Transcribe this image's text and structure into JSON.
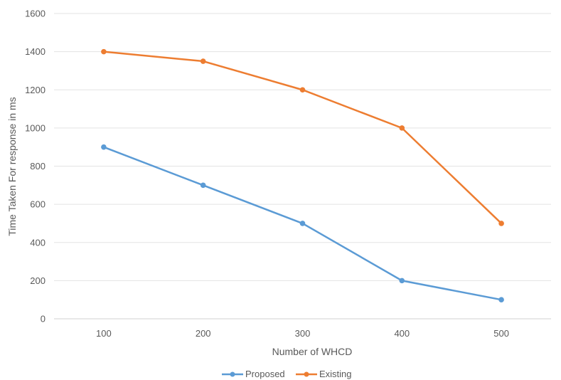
{
  "chart_data": {
    "type": "line",
    "title": "",
    "xlabel": "Number of WHCD",
    "ylabel": "Time  Taken For response in ms",
    "categories": [
      "100",
      "200",
      "300",
      "400",
      "500"
    ],
    "ylim": [
      0,
      1600
    ],
    "yticks": [
      "0",
      "200",
      "400",
      "600",
      "800",
      "1000",
      "1200",
      "1400",
      "1600"
    ],
    "grid": true,
    "legend_position": "bottom",
    "series": [
      {
        "name": "Proposed",
        "color": "#5B9BD5",
        "values": [
          900,
          700,
          500,
          200,
          100
        ]
      },
      {
        "name": "Existing",
        "color": "#ED7D31",
        "values": [
          1400,
          1350,
          1200,
          1000,
          500
        ]
      }
    ]
  }
}
